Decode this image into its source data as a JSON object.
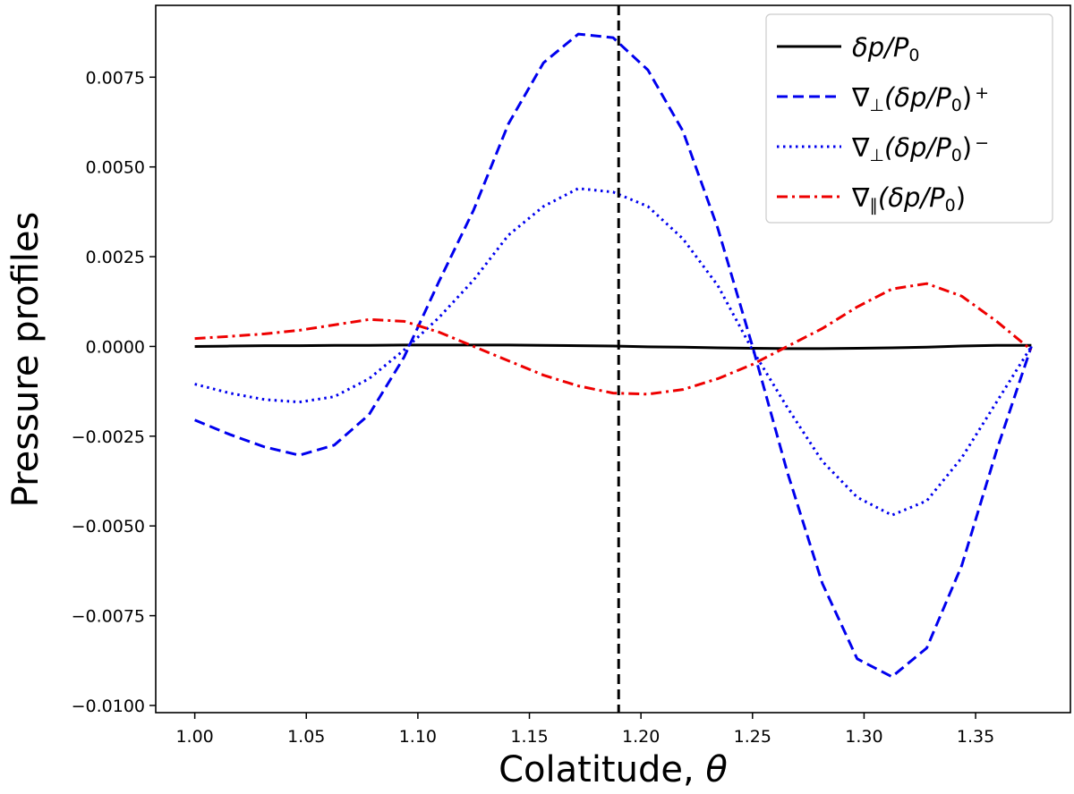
{
  "chart_data": {
    "type": "line",
    "xlabel": "Colatitude, ",
    "xlabel_symbol": "θ",
    "ylabel": "Pressure profiles",
    "xlim": [
      0.9825,
      1.3925
    ],
    "ylim": [
      -0.0102,
      0.0095
    ],
    "x_ticks": [
      1.0,
      1.05,
      1.1,
      1.15,
      1.2,
      1.25,
      1.3,
      1.35
    ],
    "x_tick_labels": [
      "1.00",
      "1.05",
      "1.10",
      "1.15",
      "1.20",
      "1.25",
      "1.30",
      "1.35"
    ],
    "y_ticks": [
      0.0075,
      0.005,
      0.0025,
      0.0,
      -0.0025,
      -0.005,
      -0.0075,
      -0.01
    ],
    "y_tick_labels": [
      "0.0075",
      "0.0050",
      "0.0025",
      "0.0000",
      "−0.0025",
      "−0.0050",
      "−0.0075",
      "−0.0100"
    ],
    "vline": {
      "x": 1.19,
      "color": "#000000",
      "style": "dashed"
    },
    "legend_position": "top-right",
    "x": [
      1.0,
      1.0156,
      1.0313,
      1.0469,
      1.0625,
      1.0781,
      1.0938,
      1.1094,
      1.125,
      1.1406,
      1.1563,
      1.1719,
      1.1875,
      1.2031,
      1.2188,
      1.2344,
      1.25,
      1.2656,
      1.2813,
      1.2969,
      1.3125,
      1.3281,
      1.3438,
      1.3594,
      1.375
    ],
    "series": [
      {
        "name": "δp/P₀",
        "legend": {
          "main": "δp/P",
          "sub": "0"
        },
        "color": "#000000",
        "style": "solid",
        "values": [
          0.0,
          1e-05,
          2e-05,
          2e-05,
          3e-05,
          3e-05,
          4e-05,
          4e-05,
          4e-05,
          4e-05,
          3e-05,
          2e-05,
          1e-05,
          -1e-05,
          -2e-05,
          -4e-05,
          -5e-05,
          -6e-05,
          -6e-05,
          -5e-05,
          -4e-05,
          -2e-05,
          1e-05,
          3e-05,
          3e-05
        ]
      },
      {
        "name": "∇⊥(δp/P₀)⁺",
        "legend": {
          "pre": "∇",
          "presub": "⊥",
          "main": "(δp/P",
          "sub": "0",
          "post": ")",
          "sup": "+"
        },
        "color": "#0000ee",
        "style": "dashed",
        "values": [
          -0.00205,
          -0.00245,
          -0.0028,
          -0.00303,
          -0.00275,
          -0.0019,
          -0.0003,
          0.0018,
          0.0038,
          0.0062,
          0.0079,
          0.0087,
          0.0086,
          0.0077,
          0.006,
          0.0033,
          0.0,
          -0.0035,
          -0.0066,
          -0.0087,
          -0.0092,
          -0.0084,
          -0.0061,
          -0.0029,
          0.0
        ]
      },
      {
        "name": "∇⊥(δp/P₀)⁻",
        "legend": {
          "pre": "∇",
          "presub": "⊥",
          "main": "(δp/P",
          "sub": "0",
          "post": ")",
          "sup": "−"
        },
        "color": "#0000ee",
        "style": "dotted",
        "values": [
          -0.00105,
          -0.0013,
          -0.00148,
          -0.00155,
          -0.0014,
          -0.0009,
          -0.0001,
          0.0008,
          0.00185,
          0.0031,
          0.0039,
          0.0044,
          0.0043,
          0.0039,
          0.003,
          0.0017,
          -0.0001,
          -0.0017,
          -0.0032,
          -0.0042,
          -0.0047,
          -0.0043,
          -0.0031,
          -0.00155,
          0.0
        ]
      },
      {
        "name": "∇∥(δp/P₀)",
        "legend": {
          "pre": "∇",
          "presub": "∥",
          "main": "(δp/P",
          "sub": "0",
          "post": ")"
        },
        "color": "#ee0000",
        "style": "dashdot",
        "values": [
          0.00022,
          0.00028,
          0.00035,
          0.00045,
          0.0006,
          0.00075,
          0.0007,
          0.0004,
          0.0,
          -0.0004,
          -0.0008,
          -0.0011,
          -0.0013,
          -0.00133,
          -0.0012,
          -0.0009,
          -0.0005,
          0.0,
          0.0005,
          0.0011,
          0.0016,
          0.00175,
          0.0014,
          0.0007,
          -0.0001
        ]
      }
    ]
  }
}
